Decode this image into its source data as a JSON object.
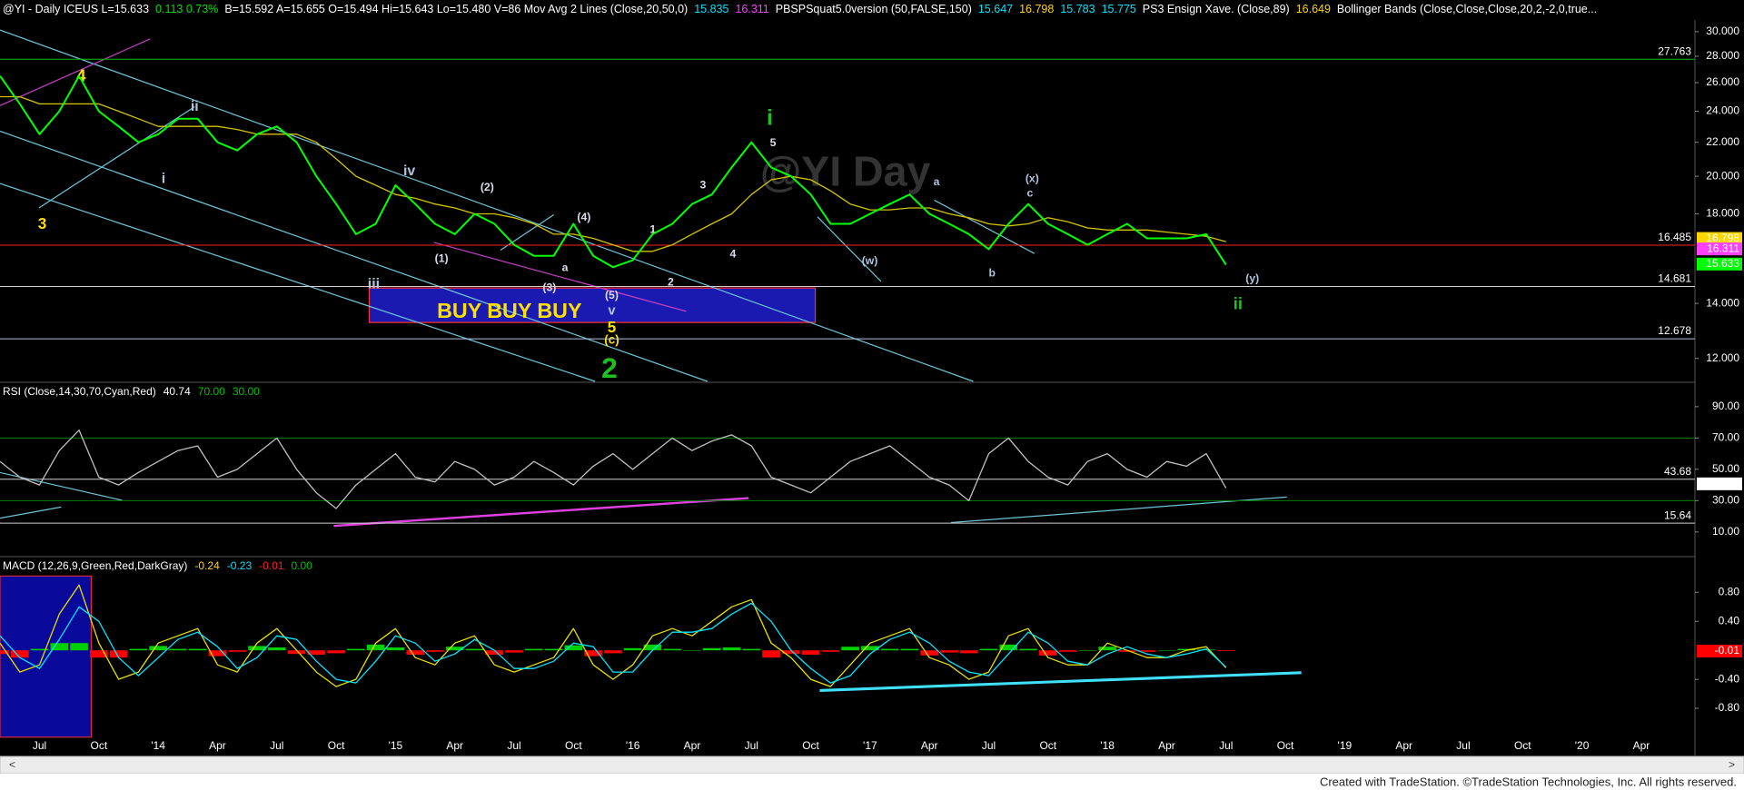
{
  "header": [
    {
      "text": "@YI - Daily  ICEUS  L=15.633",
      "color": "#ffffff"
    },
    {
      "text": "0.113  0.73%",
      "color": "#00e000"
    },
    {
      "text": "B=15.592  A=15.655  O=15.494  Hi=15.643  Lo=15.480  V=86  Mov Avg 2 Lines (Close,20,50,0)",
      "color": "#ffffff"
    },
    {
      "text": "15.835",
      "color": "#00e5ff"
    },
    {
      "text": "16.311",
      "color": "#ff40ff"
    },
    {
      "text": "PBSPSquat5.0version (50,FALSE,150)",
      "color": "#ffffff"
    },
    {
      "text": "15.647",
      "color": "#00e5ff"
    },
    {
      "text": "16.798",
      "color": "#ffd700"
    },
    {
      "text": "15.783",
      "color": "#00e5ff"
    },
    {
      "text": "15.775",
      "color": "#00e5ff"
    },
    {
      "text": "PS3 Ensign Xave. (Close,89)",
      "color": "#ffffff"
    },
    {
      "text": "16.649",
      "color": "#ffd700"
    },
    {
      "text": "Bollinger Bands (Close,Close,Close,20,2,-2,0,true...",
      "color": "#ffffff"
    }
  ],
  "footer": "Created with TradeStation. ©TradeStation Technologies, Inc. All rights reserved.",
  "chart_data": [
    {
      "type": "line",
      "log_scale": true,
      "watermark": "@YI Day",
      "annotations": [
        "4",
        "3",
        "ii",
        "i",
        "iv",
        "iii",
        "(1)",
        "(2)",
        "(3)",
        "(4)",
        "(5)",
        "a",
        "v",
        "5",
        "(c)",
        "2",
        "1",
        "2",
        "3",
        "4",
        "i",
        "5",
        "a",
        "(w)",
        "b",
        "(x)",
        "c",
        "(y)",
        "ii",
        "BUY BUY BUY"
      ],
      "ylim": [
        11.25,
        31.0
      ],
      "yticks": [
        {
          "value": 12,
          "label": "12.000"
        },
        {
          "value": 14,
          "label": "14.000"
        },
        {
          "value": 18,
          "label": "18.000"
        },
        {
          "value": 20,
          "label": "20.000"
        },
        {
          "value": 22,
          "label": "22.000"
        },
        {
          "value": 24,
          "label": "24.000"
        },
        {
          "value": 26,
          "label": "26.000"
        },
        {
          "value": 28,
          "label": "28.000"
        },
        {
          "value": 30,
          "label": "30.000"
        }
      ],
      "levels": [
        {
          "value": 27.763,
          "color": "#00c000"
        },
        {
          "value": 16.485,
          "color": "#ff2020"
        },
        {
          "value": 14.681,
          "color": "#d0d0d0"
        },
        {
          "value": 12.678,
          "color": "#b0c4de"
        }
      ],
      "last_values": [
        {
          "value": 16.798,
          "color": "#ffd700"
        },
        {
          "value": 16.311,
          "color": "#ff40ff"
        },
        {
          "value": 15.633,
          "color": "#00ff00"
        }
      ],
      "series": [
        {
          "color": "#d4c400",
          "values": [
            25,
            25,
            24.5,
            24.5,
            24.5,
            24.5,
            24,
            23.5,
            23,
            23,
            23,
            23,
            22.8,
            22.5,
            22.5,
            22.5,
            22,
            21,
            20,
            19.5,
            19,
            18.8,
            18.5,
            18.3,
            18,
            18,
            17.8,
            17.5,
            17,
            17,
            16.8,
            16.5,
            16.2,
            16.2,
            16.5,
            17,
            17.5,
            18,
            19,
            19.8,
            20,
            19.8,
            19.2,
            18.5,
            18.2,
            18.2,
            18.3,
            18.3,
            18,
            17.8,
            17.5,
            17.4,
            17.5,
            17.8,
            17.6,
            17.3,
            17.2,
            17.2,
            17.2,
            17.1,
            17,
            16.9,
            16.65,
            null,
            null,
            null,
            null,
            null,
            null,
            null,
            null,
            null,
            null,
            null,
            null,
            null,
            null,
            null,
            null,
            null,
            null,
            null,
            null,
            null,
            null,
            null,
            null
          ]
        },
        {
          "color": "#00ff00",
          "values": [
            26.5,
            24.5,
            22.5,
            24,
            26.5,
            24,
            23,
            22,
            22.5,
            23.5,
            23.5,
            22,
            21.5,
            22.5,
            23,
            22,
            20,
            18.5,
            17,
            17.5,
            19.5,
            18.5,
            17.5,
            17,
            18,
            17.5,
            16.5,
            16,
            16,
            17.5,
            16,
            15.5,
            15.8,
            17,
            17.5,
            18.5,
            19,
            20.5,
            22,
            20.5,
            20,
            19,
            17.5,
            17.5,
            18,
            18.5,
            19,
            18,
            17.5,
            17,
            16.3,
            17.5,
            18.5,
            17.5,
            17,
            16.5,
            17,
            17.5,
            16.8,
            16.8,
            16.8,
            17,
            15.6,
            null,
            null,
            null,
            null,
            null,
            null,
            null,
            null,
            null,
            null,
            null,
            null,
            null,
            null,
            null,
            null,
            null,
            null,
            null,
            null,
            null,
            null,
            null,
            null
          ]
        }
      ]
    },
    {
      "type": "line",
      "title_parts": [
        {
          "text": "RSI (Close,14,30,70,Cyan,Red)",
          "color": "#ffffff"
        },
        {
          "text": "40.74",
          "color": "#ffffff"
        },
        {
          "text": "70.00",
          "color": "#00c000"
        },
        {
          "text": "30.00",
          "color": "#00c000"
        }
      ],
      "ylim": [
        -4,
        105
      ],
      "yticks": [
        {
          "value": 10,
          "label": "10.00"
        },
        {
          "value": 30,
          "label": "30.00"
        },
        {
          "value": 50,
          "label": "50.00"
        },
        {
          "value": 70,
          "label": "70.00"
        },
        {
          "value": 90,
          "label": "90.00"
        }
      ],
      "guide_lines": [
        70,
        30
      ],
      "guide_color": "#008000",
      "levels": [
        {
          "value": 43.68,
          "color": "#d0d0d0"
        },
        {
          "value": 15.64,
          "color": "#d0d0d0"
        }
      ],
      "last_values": [
        {
          "value": 40.74,
          "color": "#ffffff"
        }
      ],
      "series": [
        {
          "color": "#c0c0c0",
          "values": [
            55,
            45,
            40,
            62,
            75,
            45,
            40,
            48,
            55,
            62,
            65,
            45,
            50,
            60,
            70,
            50,
            35,
            25,
            40,
            50,
            60,
            45,
            42,
            55,
            50,
            40,
            45,
            55,
            48,
            40,
            52,
            60,
            50,
            60,
            70,
            62,
            68,
            72,
            65,
            45,
            40,
            35,
            45,
            55,
            60,
            65,
            55,
            45,
            40,
            30,
            60,
            70,
            55,
            45,
            40,
            55,
            60,
            50,
            45,
            55,
            52,
            60,
            38,
            null,
            null,
            null,
            null,
            null,
            null,
            null,
            null,
            null,
            null,
            null,
            null,
            null,
            null,
            null,
            null,
            null,
            null,
            null,
            null,
            null,
            null,
            null,
            null
          ]
        }
      ]
    },
    {
      "type": "line",
      "title_parts": [
        {
          "text": "MACD (12,26,9,Green,Red,DarkGray)",
          "color": "#ffffff"
        },
        {
          "text": "-0.24",
          "color": "#ffd700"
        },
        {
          "text": "-0.23",
          "color": "#00e5ff"
        },
        {
          "text": "-0.01",
          "color": "#ff2020"
        },
        {
          "text": "0.00",
          "color": "#00c000"
        }
      ],
      "categories": [
        null,
        null,
        "Jul",
        null,
        null,
        "Oct",
        null,
        null,
        "'14",
        null,
        null,
        "Apr",
        null,
        null,
        "Jul",
        null,
        null,
        "Oct",
        null,
        null,
        "'15",
        null,
        null,
        "Apr",
        null,
        null,
        "Jul",
        null,
        null,
        "Oct",
        null,
        null,
        "'16",
        null,
        null,
        "Apr",
        null,
        null,
        "Jul",
        null,
        null,
        "Oct",
        null,
        null,
        "'17",
        null,
        null,
        "Apr",
        null,
        null,
        "Jul",
        null,
        null,
        "Oct",
        null,
        null,
        "'18",
        null,
        null,
        "Apr",
        null,
        null,
        "Jul",
        null,
        null,
        "Oct",
        null,
        null,
        "'19",
        null,
        null,
        "Apr",
        null,
        null,
        "Jul",
        null,
        null,
        "Oct",
        null,
        null,
        "'20",
        null,
        null,
        "Apr",
        null,
        null,
        null
      ],
      "ylim": [
        -1.2,
        1.28
      ],
      "yticks": [
        {
          "value": -0.8,
          "label": "-0.80"
        },
        {
          "value": -0.4,
          "label": "-0.40"
        },
        {
          "value": 0.4,
          "label": "0.40"
        },
        {
          "value": 0.8,
          "label": "0.80"
        }
      ],
      "last_values": [
        {
          "value": -0.01,
          "color": "#ff0000"
        }
      ],
      "series": [
        {
          "type": "bar",
          "colors": {
            "positive": "#00d000",
            "negative": "#ff0000"
          },
          "values": [
            -0.05,
            -0.1,
            0.02,
            0.1,
            0.1,
            -0.1,
            -0.1,
            0.02,
            0.06,
            0.02,
            0.02,
            -0.08,
            -0.02,
            0.06,
            0.04,
            -0.05,
            -0.06,
            -0.04,
            0.02,
            0.08,
            0.04,
            -0.06,
            -0.02,
            0.05,
            0.02,
            -0.06,
            -0.03,
            0.02,
            0.02,
            0.07,
            -0.08,
            -0.04,
            0.03,
            0.08,
            0.02,
            0,
            0.03,
            0.04,
            0.02,
            -0.1,
            -0.05,
            -0.06,
            -0.02,
            0.05,
            0.06,
            0.02,
            0.02,
            -0.07,
            -0.03,
            -0.04,
            0.02,
            0.08,
            0.02,
            -0.07,
            -0.02,
            0,
            0.05,
            -0.02,
            -0.02,
            0,
            0.02,
            0.01,
            -0.01,
            null,
            null,
            null,
            null,
            null,
            null,
            null,
            null,
            null,
            null,
            null,
            null,
            null,
            null,
            null,
            null,
            null,
            null,
            null,
            null,
            null,
            null,
            null,
            null
          ]
        },
        {
          "color": "#e8e000",
          "values": [
            0.1,
            -0.3,
            -0.2,
            0.5,
            0.9,
            0.1,
            -0.4,
            -0.3,
            0.1,
            0.2,
            0.3,
            -0.2,
            -0.3,
            0.1,
            0.3,
            0.0,
            -0.3,
            -0.5,
            -0.4,
            0.1,
            0.3,
            -0.1,
            -0.2,
            0.1,
            0.2,
            -0.2,
            -0.3,
            -0.2,
            -0.1,
            0.3,
            -0.2,
            -0.4,
            -0.2,
            0.2,
            0.3,
            0.2,
            0.4,
            0.6,
            0.7,
            0.1,
            -0.1,
            -0.4,
            -0.5,
            -0.2,
            0.1,
            0.2,
            0.3,
            -0.1,
            -0.2,
            -0.4,
            -0.3,
            0.2,
            0.3,
            -0.1,
            -0.2,
            -0.2,
            0.1,
            0.0,
            -0.1,
            -0.1,
            0.0,
            0.05,
            -0.24,
            null,
            null,
            null,
            null,
            null,
            null,
            null,
            null,
            null,
            null,
            null,
            null,
            null,
            null,
            null,
            null,
            null,
            null,
            null,
            null,
            null,
            null,
            null,
            null
          ]
        },
        {
          "color": "#00e5ff",
          "values": [
            0.2,
            -0.1,
            -0.25,
            0.15,
            0.6,
            0.4,
            -0.1,
            -0.35,
            -0.1,
            0.15,
            0.25,
            0.05,
            -0.25,
            -0.1,
            0.2,
            0.15,
            -0.15,
            -0.4,
            -0.45,
            -0.15,
            0.2,
            0.1,
            -0.15,
            -0.05,
            0.15,
            0.0,
            -0.25,
            -0.25,
            -0.15,
            0.1,
            0.05,
            -0.3,
            -0.3,
            0.0,
            0.25,
            0.25,
            0.3,
            0.5,
            0.65,
            0.4,
            0.0,
            -0.25,
            -0.45,
            -0.35,
            -0.05,
            0.15,
            0.25,
            0.1,
            -0.15,
            -0.3,
            -0.35,
            -0.05,
            0.25,
            0.1,
            -0.15,
            -0.2,
            -0.05,
            0.05,
            -0.05,
            -0.1,
            -0.05,
            0.02,
            -0.23,
            null,
            null,
            null,
            null,
            null,
            null,
            null,
            null,
            null,
            null,
            null,
            null,
            null,
            null,
            null,
            null,
            null,
            null,
            null,
            null,
            null,
            null,
            null,
            null
          ]
        }
      ]
    }
  ]
}
